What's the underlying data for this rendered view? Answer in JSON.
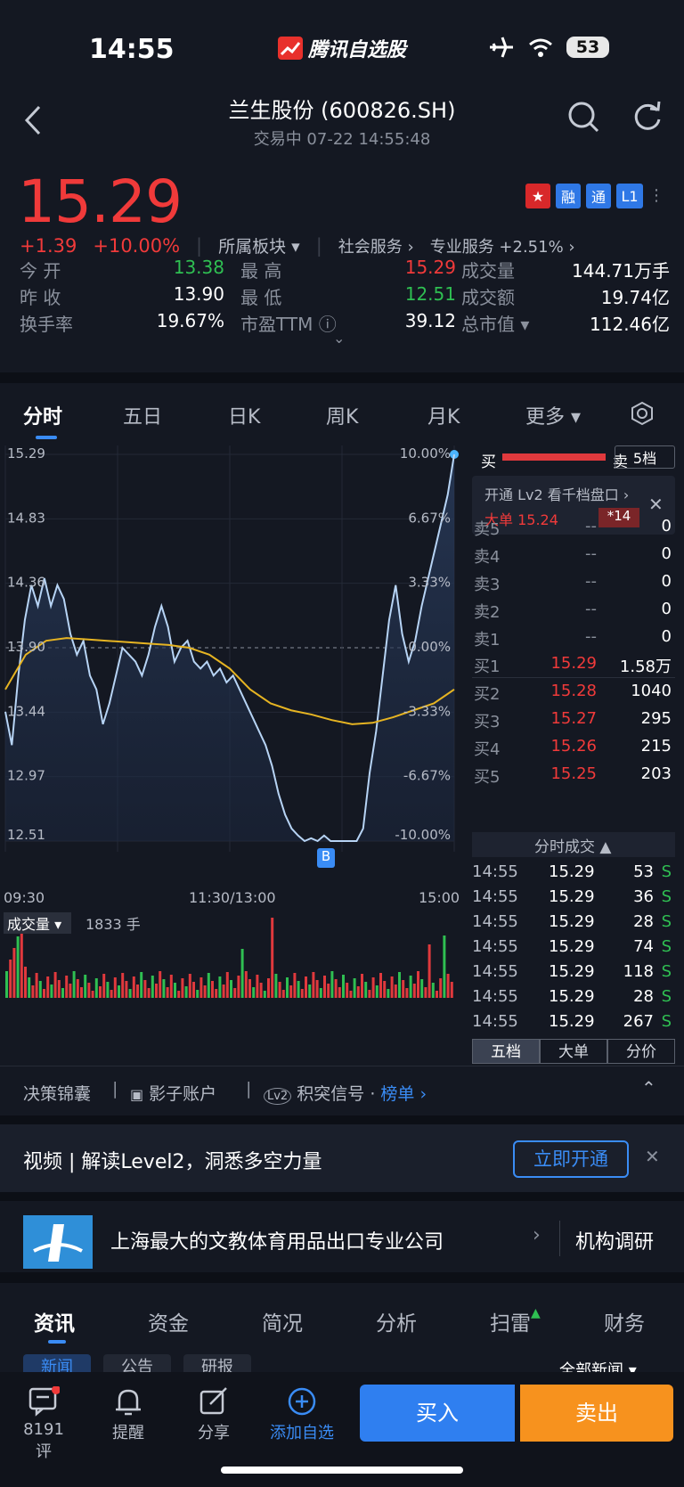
{
  "status": {
    "time": "14:55",
    "app": "腾讯自选股",
    "battery": "53"
  },
  "header": {
    "title": "兰生股份 (600826.SH)",
    "subtitle": "交易中   07-22 14:55:48"
  },
  "quote": {
    "price": "15.29",
    "change": "+1.39",
    "change_pct": "+10.00%",
    "sector_label": "所属板块",
    "sector1": "社会服务",
    "sector2": "专业服务 +2.51%",
    "flags": [
      "融",
      "通",
      "L1"
    ],
    "stats": [
      {
        "l": "今  开",
        "v": "13.38",
        "c": "green",
        "l2": "最  高",
        "v2": "15.29",
        "c2": "red",
        "l3": "成交量",
        "v3": "144.71万手"
      },
      {
        "l": "昨  收",
        "v": "13.90",
        "c": "white",
        "l2": "最  低",
        "v2": "12.51",
        "c2": "green",
        "l3": "成交额",
        "v3": "19.74亿"
      },
      {
        "l": "换手率",
        "v": "19.67%",
        "c": "white",
        "l2": "市盈TTM",
        "v2": "39.12",
        "c2": "white",
        "l3": "总市值",
        "v3": "112.46亿"
      }
    ]
  },
  "tabs": [
    "分时",
    "五日",
    "日K",
    "周K",
    "月K",
    "更多"
  ],
  "chart_data": {
    "type": "line",
    "title": "",
    "y_left": [
      "15.29",
      "14.83",
      "14.36",
      "13.90",
      "13.44",
      "12.97",
      "12.51"
    ],
    "y_right": [
      "10.00%",
      "6.67%",
      "3.33%",
      "0.00%",
      "-3.33%",
      "-6.67%",
      "-10.00%"
    ],
    "x_labels": [
      "09:30",
      "11:30/13:00",
      "15:00"
    ],
    "ylim": [
      12.51,
      15.29
    ],
    "price": [
      13.44,
      13.2,
      13.7,
      14.1,
      14.35,
      14.2,
      14.4,
      14.2,
      14.35,
      14.25,
      14.0,
      13.85,
      13.95,
      13.7,
      13.6,
      13.35,
      13.5,
      13.7,
      13.9,
      13.85,
      13.8,
      13.7,
      13.85,
      14.05,
      14.2,
      14.05,
      13.8,
      13.9,
      13.95,
      13.8,
      13.75,
      13.8,
      13.7,
      13.75,
      13.65,
      13.7,
      13.6,
      13.5,
      13.4,
      13.3,
      13.2,
      13.05,
      12.85,
      12.7,
      12.6,
      12.55,
      12.51,
      12.53,
      12.51,
      12.55,
      12.51,
      12.51,
      12.51,
      12.51,
      12.51,
      12.6,
      13.0,
      13.3,
      13.7,
      14.1,
      14.35,
      14.0,
      13.8,
      13.95,
      14.2,
      14.4,
      14.6,
      14.8,
      15.0,
      15.29
    ],
    "avg": [
      13.6,
      13.85,
      13.95,
      13.97,
      13.96,
      13.95,
      13.94,
      13.93,
      13.92,
      13.9,
      13.85,
      13.75,
      13.6,
      13.5,
      13.45,
      13.42,
      13.38,
      13.35,
      13.36,
      13.4,
      13.45,
      13.5,
      13.6
    ],
    "volume_label": "成交量",
    "volume_value": "1833 手",
    "marker": "B"
  },
  "orderbook": {
    "header_buy": "买",
    "header_sell": "卖",
    "level": "5档",
    "promo": "开通 Lv2 看千档盘口",
    "big_order": "大单 15.24",
    "big_count": "*14",
    "asks": [
      {
        "n": "卖5",
        "p": "--",
        "v": "0"
      },
      {
        "n": "卖4",
        "p": "--",
        "v": "0"
      },
      {
        "n": "卖3",
        "p": "--",
        "v": "0"
      },
      {
        "n": "卖2",
        "p": "--",
        "v": "0"
      },
      {
        "n": "卖1",
        "p": "--",
        "v": "0"
      }
    ],
    "bids": [
      {
        "n": "买1",
        "p": "15.29",
        "v": "1.58万"
      },
      {
        "n": "买2",
        "p": "15.28",
        "v": "1040"
      },
      {
        "n": "买3",
        "p": "15.27",
        "v": "295"
      },
      {
        "n": "买4",
        "p": "15.26",
        "v": "215"
      },
      {
        "n": "买5",
        "p": "15.25",
        "v": "203"
      }
    ],
    "trades_title": "分时成交",
    "trades": [
      {
        "t": "14:55",
        "p": "15.29",
        "v": "53"
      },
      {
        "t": "14:55",
        "p": "15.29",
        "v": "36"
      },
      {
        "t": "14:55",
        "p": "15.29",
        "v": "28"
      },
      {
        "t": "14:55",
        "p": "15.29",
        "v": "74"
      },
      {
        "t": "14:55",
        "p": "15.29",
        "v": "118"
      },
      {
        "t": "14:55",
        "p": "15.29",
        "v": "28"
      },
      {
        "t": "14:55",
        "p": "15.29",
        "v": "267"
      }
    ],
    "side": "S",
    "subtabs": [
      "五档",
      "大单",
      "分价"
    ]
  },
  "features": {
    "a": "决策锦囊",
    "b": "影子账户",
    "c": "积突信号",
    "c2": "榜单"
  },
  "banner": {
    "text": "视频 | 解读Level2，洞悉多空力量",
    "btn": "立即开通"
  },
  "company": {
    "text": "上海最大的文教体育用品出口专业公司",
    "right": "机构调研"
  },
  "info_tabs": [
    "资讯",
    "资金",
    "简况",
    "分析",
    "扫雷",
    "财务"
  ],
  "sub_tabs": [
    "新闻",
    "公告",
    "研报"
  ],
  "all_news": "全部新闻",
  "bottom": {
    "comment": "8191评",
    "remind": "提醒",
    "share": "分享",
    "add": "添加自选",
    "buy": "买入",
    "sell": "卖出"
  }
}
